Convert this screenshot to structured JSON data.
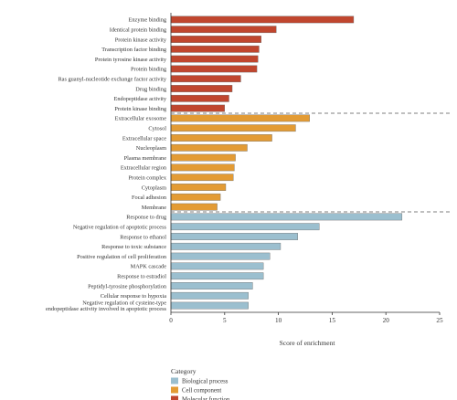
{
  "chart_data": {
    "type": "bar",
    "orientation": "horizontal",
    "xlabel": "Score of enrichment",
    "xlim": [
      0,
      25
    ],
    "xticks": [
      0,
      5,
      10,
      15,
      20,
      25
    ],
    "grid": false,
    "legend_title": "Category",
    "legend_placement": "bottom-left",
    "groups": [
      {
        "name": "Molecular function",
        "color": "#c0462e",
        "categories": [
          "Enzyme binding",
          "Identical protein binding",
          "Protein kinase activity",
          "Transcription factor binding",
          "Protein tyrosine kinase activity",
          "Protein binding",
          "Ras guanyl-nucleotide exchange factor activity",
          "Drug binding",
          "Endopeptidase activity",
          "Protein kinase binding"
        ],
        "values": [
          17.0,
          9.8,
          8.4,
          8.2,
          8.1,
          8.0,
          6.5,
          5.7,
          5.4,
          5.0
        ]
      },
      {
        "name": "Cell component",
        "color": "#e39b34",
        "categories": [
          "Extracellular exosome",
          "Cytosol",
          "Extracellular space",
          "Nucleoplasm",
          "Plasma membrane",
          "Extracellular region",
          "Protein complex",
          "Cytoplasm",
          "Focal adhesion",
          "Membrane"
        ],
        "values": [
          12.9,
          11.6,
          9.4,
          7.1,
          6.0,
          5.9,
          5.8,
          5.1,
          4.6,
          4.3
        ]
      },
      {
        "name": "Biological process",
        "color": "#9bbfcf",
        "categories": [
          "Response to drug",
          "Negative regulation of apoptotic process",
          "Response to ethanol",
          "Response to toxic substance",
          "Positive regulation of cell proliferation",
          "MAPK cascade",
          "Response to estradiol",
          "Peptidyl-tyrosine phosphorylation",
          "Cellular response to hypoxia",
          "Negative regulation of cysteine-type endopeptidase activity involved in apoptotic process"
        ],
        "values": [
          21.5,
          13.8,
          11.8,
          10.2,
          9.2,
          8.6,
          8.6,
          7.6,
          7.2,
          7.2
        ]
      }
    ],
    "legend": [
      "Biological process",
      "Cell component",
      "Molecular function"
    ]
  }
}
